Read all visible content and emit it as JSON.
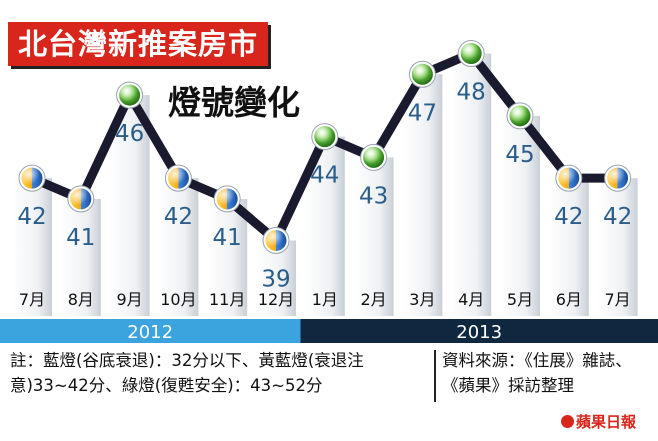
{
  "title": "北台灣新推案房市",
  "subtitle": "燈號變化",
  "chart_data": {
    "type": "line",
    "title": "北台灣新推案房市",
    "subtitle": "燈號變化",
    "categories": [
      "7月",
      "8月",
      "9月",
      "10月",
      "11月",
      "12月",
      "1月",
      "2月",
      "3月",
      "4月",
      "5月",
      "6月",
      "7月"
    ],
    "values": [
      42,
      41,
      46,
      42,
      41,
      39,
      44,
      43,
      47,
      48,
      45,
      42,
      42
    ],
    "signal": [
      "yellow-blue",
      "yellow-blue",
      "green",
      "yellow-blue",
      "yellow-blue",
      "yellow-blue",
      "green",
      "green",
      "green",
      "green",
      "green",
      "yellow-blue",
      "yellow-blue"
    ],
    "years": [
      {
        "label": "2012",
        "start_index": 0,
        "end_index": 5
      },
      {
        "label": "2013",
        "start_index": 6,
        "end_index": 12
      }
    ],
    "ylim": [
      37,
      50
    ],
    "grid": false
  },
  "colors": {
    "title_bg": "#d9261c",
    "line": "#1a1a2e",
    "value_text": "#2a5d8a",
    "year_2012": "#3ba3de",
    "year_2013": "#0f2840",
    "green_light": "#5cb83a",
    "yellow_light": "#f2b21b",
    "blue_light": "#3a7bd5"
  },
  "notes": {
    "legend": "註：藍燈(谷底衰退)：32分以下、黃藍燈(衰退注意)33~42分、綠燈(復甦安全)：43~52分",
    "source": "資料來源：《住展》雜誌、《蘋果》採訪整理",
    "brand": "蘋果日報"
  }
}
